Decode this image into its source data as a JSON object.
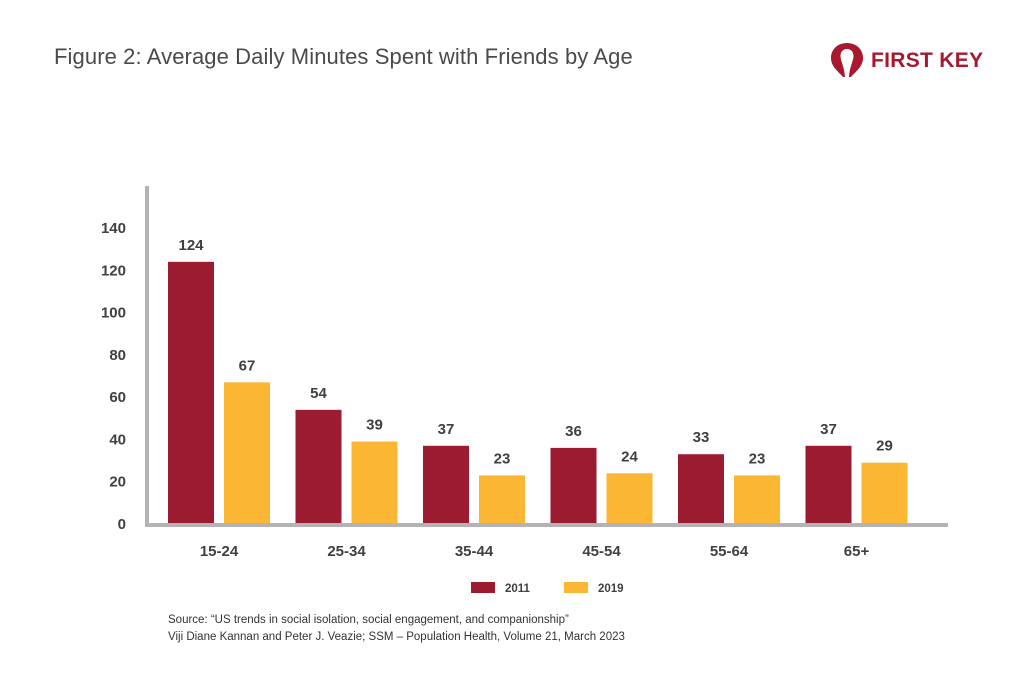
{
  "header": {
    "title": "Figure 2: Average Daily Minutes Spent with Friends by Age",
    "logo_text": "FIRST KEY"
  },
  "colors": {
    "series_2011": "#9b1b30",
    "series_2019": "#fbb733",
    "axis": "#b3b3b3",
    "text": "#404040",
    "logo": "#a6192e"
  },
  "chart_data": {
    "type": "bar",
    "title": "Figure 2: Average Daily Minutes Spent with Friends by Age",
    "xlabel": "",
    "ylabel": "",
    "categories": [
      "15-24",
      "25-34",
      "35-44",
      "45-54",
      "55-64",
      "65+"
    ],
    "series": [
      {
        "name": "2011",
        "values": [
          124,
          54,
          37,
          36,
          33,
          37
        ]
      },
      {
        "name": "2019",
        "values": [
          67,
          39,
          23,
          24,
          23,
          29
        ]
      }
    ],
    "ylim": [
      0,
      140
    ],
    "yticks": [
      0,
      20,
      40,
      60,
      80,
      100,
      120,
      140
    ],
    "grid": false,
    "legend_position": "bottom-center"
  },
  "footer": {
    "source_line1": "Source: “US trends in social isolation, social engagement, and companionship”",
    "source_line2": "Viji Diane Kannan and Peter J. Veazie; SSM – Population Health, Volume 21, March 2023"
  }
}
